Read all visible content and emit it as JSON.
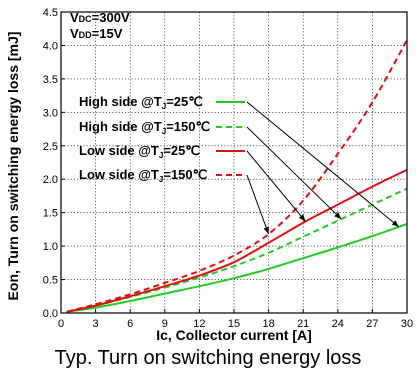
{
  "chart_data": {
    "type": "line",
    "title": "",
    "xlabel": "Ic, Collector current [A]",
    "ylabel": "Eon, Turn on switching energy loss [mJ]",
    "xlim": [
      0,
      30
    ],
    "ylim": [
      0,
      4.5
    ],
    "xticks": [
      "0",
      "3",
      "6",
      "9",
      "12",
      "15",
      "18",
      "21",
      "24",
      "27",
      "30"
    ],
    "yticks": [
      "0.0",
      "0.5",
      "1.0",
      "1.5",
      "2.0",
      "2.5",
      "3.0",
      "3.5",
      "4.0",
      "4.5"
    ],
    "grid": true,
    "legend_position": "left",
    "conditions": [
      "VDC=300V",
      "VDD=15V"
    ],
    "x": [
      0.5,
      3,
      6,
      9,
      12,
      15,
      18,
      21,
      24,
      27,
      30
    ],
    "series": [
      {
        "name": "High side @TJ=25℃",
        "legend_label": "High side @T",
        "legend_sub": "J",
        "legend_tail": "=25℃",
        "color": "#22cc22",
        "dash": false,
        "values": [
          0.02,
          0.08,
          0.18,
          0.29,
          0.4,
          0.52,
          0.66,
          0.82,
          0.98,
          1.15,
          1.33
        ]
      },
      {
        "name": "High side @TJ=150℃",
        "legend_label": "High side @T",
        "legend_sub": "J",
        "legend_tail": "=150℃",
        "color": "#22cc22",
        "dash": true,
        "values": [
          0.02,
          0.11,
          0.24,
          0.38,
          0.53,
          0.7,
          0.9,
          1.14,
          1.38,
          1.62,
          1.86
        ]
      },
      {
        "name": "Low side @TJ=25℃",
        "legend_label": "Low side @T",
        "legend_sub": "J",
        "legend_tail": "=25℃",
        "color": "#dd1111",
        "dash": false,
        "values": [
          0.02,
          0.11,
          0.25,
          0.4,
          0.56,
          0.76,
          1.05,
          1.35,
          1.62,
          1.89,
          2.14
        ]
      },
      {
        "name": "Low side @TJ=150℃",
        "legend_label": "Low side @T",
        "legend_sub": "J",
        "legend_tail": "=150℃",
        "color": "#dd1111",
        "dash": true,
        "values": [
          0.02,
          0.13,
          0.28,
          0.45,
          0.63,
          0.86,
          1.18,
          1.68,
          2.38,
          3.15,
          4.08
        ]
      }
    ]
  },
  "caption": "Typ. Turn on switching energy loss"
}
